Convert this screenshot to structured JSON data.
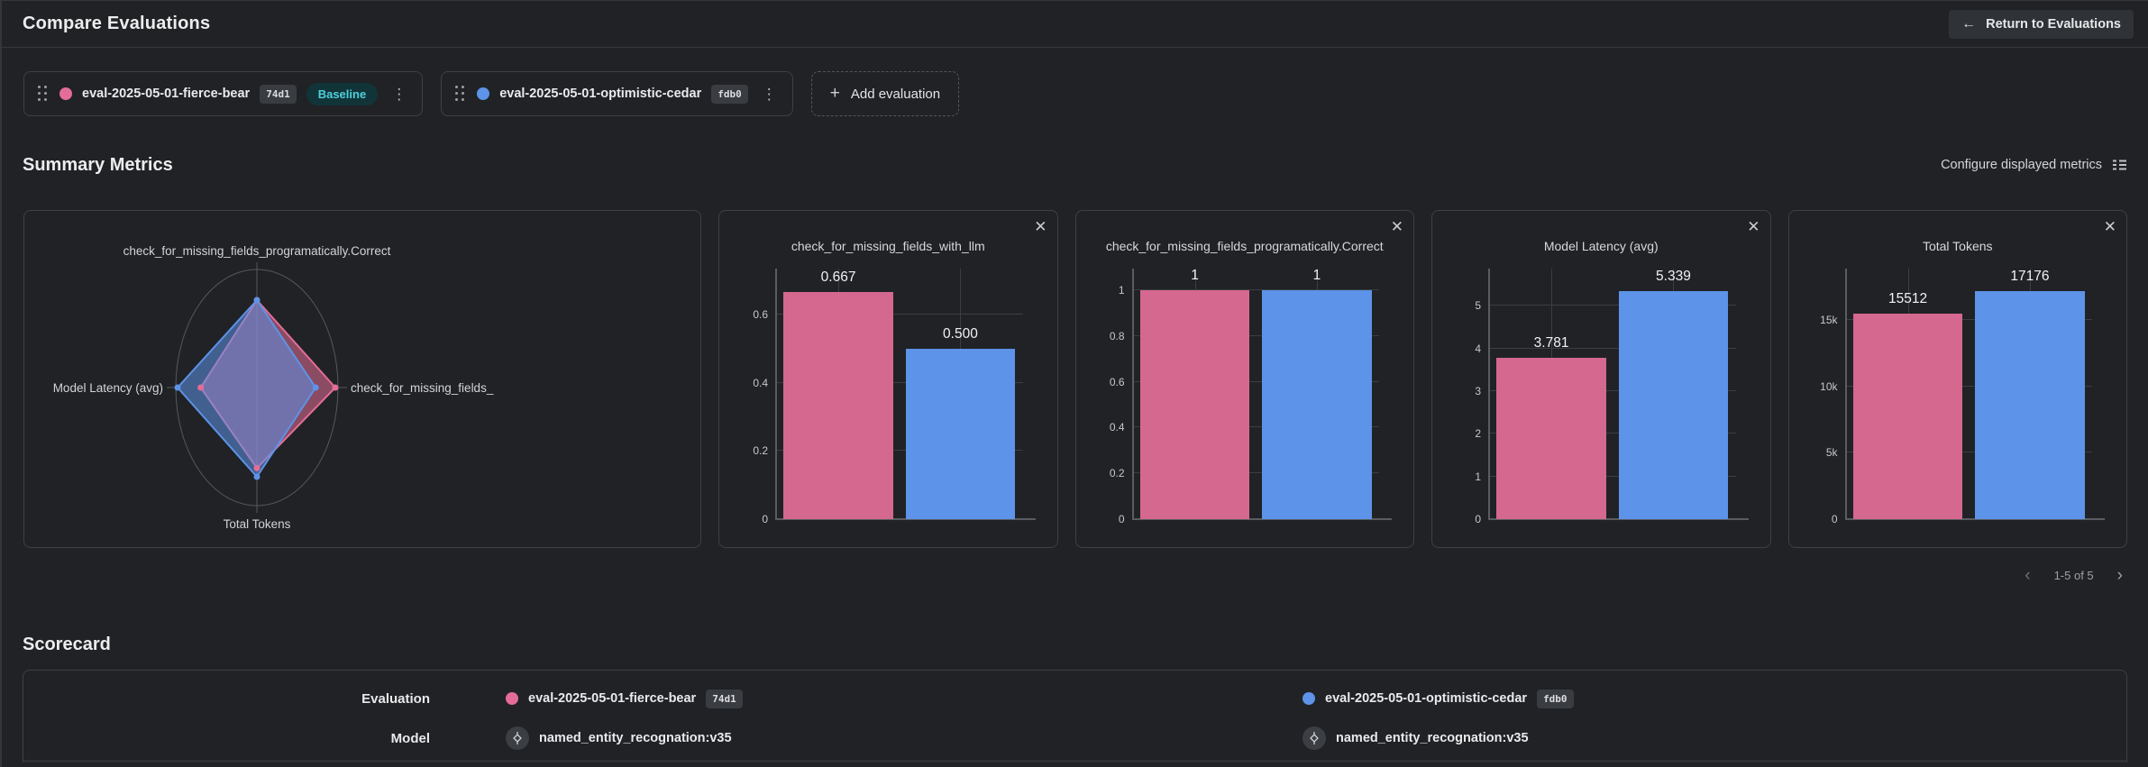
{
  "colors": {
    "pink": "#e36d96",
    "bar_pink": "#d5688e",
    "blue": "#5d93e8",
    "grid": "#3b3e42",
    "teal_text": "#4fd0db",
    "teal_bg": "#113439"
  },
  "icons": {
    "back_arrow": "←",
    "plus": "+",
    "kebab": "⋮",
    "close": "✕",
    "chevron_left": "‹",
    "chevron_right": "›"
  },
  "header": {
    "title": "Compare Evaluations",
    "return_button": "Return to Evaluations"
  },
  "evaluations": [
    {
      "name": "eval-2025-05-01-fierce-bear",
      "hash": "74d1",
      "color": "#e36d96",
      "badge": "Baseline"
    },
    {
      "name": "eval-2025-05-01-optimistic-cedar",
      "hash": "fdb0",
      "color": "#5d93e8"
    }
  ],
  "add_evaluation_label": "Add evaluation",
  "summary": {
    "title": "Summary Metrics",
    "configure_label": "Configure displayed metrics",
    "pagination_range": "1-5 of 5"
  },
  "chart_data": [
    {
      "type": "radar",
      "series": [
        "eval-2025-05-01-fierce-bear",
        "eval-2025-05-01-optimistic-cedar"
      ],
      "axes": [
        {
          "position": "top",
          "label": "check_for_missing_fields_programatically.Correct",
          "values": [
            1,
            1
          ]
        },
        {
          "position": "right",
          "label": "check_for_missing_fields_",
          "values": [
            0.667,
            0.5
          ]
        },
        {
          "position": "bottom",
          "label": "Total Tokens",
          "values": [
            15512,
            17176
          ]
        },
        {
          "position": "left",
          "label": "Model Latency (avg)",
          "values": [
            3.781,
            5.339
          ]
        }
      ]
    },
    {
      "type": "bar",
      "title": "check_for_missing_fields_with_llm",
      "series": [
        "eval-2025-05-01-fierce-bear",
        "eval-2025-05-01-optimistic-cedar"
      ],
      "values": [
        0.667,
        0.5
      ],
      "labels": [
        "0.667",
        "0.500"
      ],
      "yticks": [
        [
          0,
          "0"
        ],
        [
          0.2,
          "0.2"
        ],
        [
          0.4,
          "0.4"
        ],
        [
          0.6,
          "0.6"
        ]
      ],
      "ymax": 0.735
    },
    {
      "type": "bar",
      "title": "check_for_missing_fields_programatically.Correct",
      "series": [
        "eval-2025-05-01-fierce-bear",
        "eval-2025-05-01-optimistic-cedar"
      ],
      "values": [
        1,
        1
      ],
      "labels": [
        "1",
        "1"
      ],
      "yticks": [
        [
          0,
          "0"
        ],
        [
          0.2,
          "0.2"
        ],
        [
          0.4,
          "0.4"
        ],
        [
          0.6,
          "0.6"
        ],
        [
          0.8,
          "0.8"
        ],
        [
          1,
          "1"
        ]
      ],
      "ymax": 1.095
    },
    {
      "type": "bar",
      "title": "Model Latency (avg)",
      "series": [
        "eval-2025-05-01-fierce-bear",
        "eval-2025-05-01-optimistic-cedar"
      ],
      "values": [
        3.781,
        5.339
      ],
      "labels": [
        "3.781",
        "5.339"
      ],
      "yticks": [
        [
          0,
          "0"
        ],
        [
          1,
          "1"
        ],
        [
          2,
          "2"
        ],
        [
          3,
          "3"
        ],
        [
          4,
          "4"
        ],
        [
          5,
          "5"
        ]
      ],
      "ymax": 5.87
    },
    {
      "type": "bar",
      "title": "Total Tokens",
      "series": [
        "eval-2025-05-01-fierce-bear",
        "eval-2025-05-01-optimistic-cedar"
      ],
      "values": [
        15512,
        17176
      ],
      "labels": [
        "15512",
        "17176"
      ],
      "yticks": [
        [
          0,
          "0"
        ],
        [
          5000,
          "5k"
        ],
        [
          10000,
          "10k"
        ],
        [
          15000,
          "15k"
        ]
      ],
      "ymax": 18900
    }
  ],
  "scorecard": {
    "title": "Scorecard",
    "row_labels": {
      "evaluation": "Evaluation",
      "model": "Model"
    },
    "models": [
      "named_entity_recognation:v35",
      "named_entity_recognation:v35"
    ]
  }
}
